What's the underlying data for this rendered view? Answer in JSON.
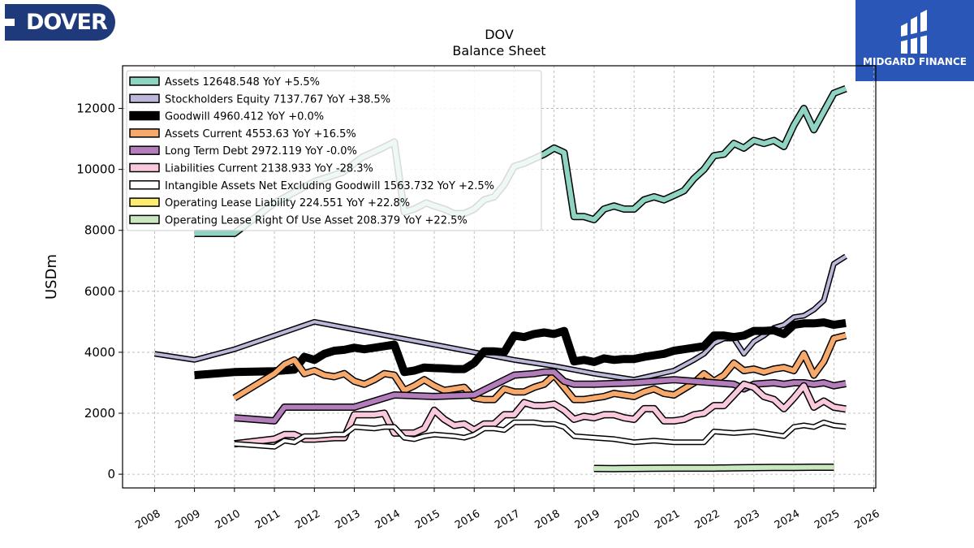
{
  "branding": {
    "left_logo_text": "DOVER",
    "right_logo_text": "MIDGARD FINANCE"
  },
  "chart_data": {
    "type": "line",
    "title": "DOV",
    "subtitle": "Balance  Sheet",
    "ylabel": "USDm",
    "xlabel": "",
    "xlim": [
      2007.2,
      2026.05
    ],
    "ylim": [
      -450,
      13400
    ],
    "xticks": [
      2008,
      2009,
      2010,
      2011,
      2012,
      2013,
      2014,
      2015,
      2016,
      2017,
      2018,
      2019,
      2020,
      2021,
      2022,
      2023,
      2024,
      2025,
      2026
    ],
    "xtick_labels": [
      "2008",
      "2009",
      "2010",
      "2011",
      "2012",
      "2013",
      "2014",
      "2015",
      "2016",
      "2017",
      "2018",
      "2019",
      "2020",
      "2021",
      "2022",
      "2023",
      "2024",
      "2025",
      "2026"
    ],
    "yticks": [
      0,
      2000,
      4000,
      6000,
      8000,
      10000,
      12000
    ],
    "ytick_labels": [
      "0",
      "2000",
      "4000",
      "6000",
      "8000",
      "10000",
      "12000"
    ],
    "grid": true,
    "legend_position": "top-left",
    "series": [
      {
        "name": "Assets  12648.548 YoY +5.5%",
        "color": "#8fd3c3",
        "width": 6,
        "x": [
          2009.0,
          2010.0,
          2011.0,
          2012.0,
          2012.7,
          2013.2,
          2013.7,
          2014.0,
          2014.25,
          2014.5,
          2014.8,
          2015.0,
          2015.25,
          2015.5,
          2015.75,
          2016.0,
          2016.25,
          2016.5,
          2016.75,
          2017.0,
          2017.25,
          2017.5,
          2017.75,
          2018.0,
          2018.25,
          2018.5,
          2018.75,
          2019.0,
          2019.25,
          2019.5,
          2019.75,
          2020.0,
          2020.25,
          2020.5,
          2020.75,
          2021.0,
          2021.25,
          2021.5,
          2021.75,
          2022.0,
          2022.25,
          2022.5,
          2022.75,
          2023.0,
          2023.25,
          2023.5,
          2023.75,
          2024.0,
          2024.25,
          2024.5,
          2024.75,
          2025.0,
          2025.3
        ],
        "y": [
          7900,
          7900,
          8900,
          9600,
          9900,
          10400,
          10700,
          10900,
          8600,
          8700,
          8900,
          8800,
          8700,
          8550,
          8550,
          8700,
          9000,
          9100,
          9500,
          10100,
          10200,
          10350,
          10500,
          10700,
          10550,
          8450,
          8450,
          8350,
          8700,
          8800,
          8700,
          8700,
          9000,
          9100,
          9000,
          9150,
          9300,
          9700,
          10000,
          10450,
          10500,
          10850,
          10700,
          10950,
          10850,
          10950,
          10750,
          11450,
          12000,
          11300,
          11900,
          12500,
          12650
        ]
      },
      {
        "name": "Stockholders Equity  7137.767 YoY +38.5%",
        "color": "#bcb8d9",
        "width": 4,
        "x": [
          2008.0,
          2009.0,
          2010.0,
          2011.0,
          2012.0,
          2013.0,
          2014.0,
          2015.0,
          2016.0,
          2017.0,
          2018.0,
          2019.0,
          2020.0,
          2021.0,
          2021.5,
          2021.75,
          2022.0,
          2022.25,
          2022.5,
          2022.75,
          2023.0,
          2023.25,
          2023.5,
          2023.75,
          2024.0,
          2024.25,
          2024.5,
          2024.75,
          2025.0,
          2025.3
        ],
        "y": [
          3950,
          3750,
          4100,
          4550,
          5000,
          4750,
          4500,
          4250,
          4000,
          3750,
          3550,
          3300,
          3100,
          3400,
          3750,
          3950,
          4300,
          4450,
          4450,
          3950,
          4350,
          4550,
          4800,
          4900,
          5150,
          5200,
          5400,
          5700,
          6900,
          7150
        ]
      },
      {
        "name": "Goodwill  4960.412 YoY +0.0%",
        "color": "#000000",
        "width": 10,
        "x": [
          2009.0,
          2010.0,
          2011.0,
          2011.5,
          2011.75,
          2012.0,
          2012.25,
          2012.5,
          2012.75,
          2013.0,
          2013.25,
          2013.5,
          2013.75,
          2014.0,
          2014.25,
          2014.5,
          2014.75,
          2015.0,
          2015.25,
          2015.5,
          2015.75,
          2016.0,
          2016.25,
          2016.5,
          2016.75,
          2017.0,
          2017.25,
          2017.5,
          2017.75,
          2018.0,
          2018.25,
          2018.5,
          2018.75,
          2019.0,
          2019.25,
          2019.5,
          2019.75,
          2020.0,
          2020.25,
          2020.5,
          2020.75,
          2021.0,
          2021.25,
          2021.5,
          2021.75,
          2022.0,
          2022.25,
          2022.5,
          2022.75,
          2023.0,
          2023.25,
          2023.5,
          2023.75,
          2024.0,
          2024.25,
          2024.5,
          2024.75,
          2025.0,
          2025.3
        ],
        "y": [
          3250,
          3350,
          3380,
          3430,
          3850,
          3750,
          3950,
          4050,
          4080,
          4150,
          4100,
          4150,
          4200,
          4250,
          3350,
          3400,
          3500,
          3480,
          3470,
          3450,
          3450,
          3650,
          4030,
          4030,
          4000,
          4550,
          4500,
          4600,
          4650,
          4600,
          4700,
          3700,
          3750,
          3680,
          3800,
          3750,
          3780,
          3780,
          3850,
          3900,
          3950,
          4050,
          4100,
          4150,
          4200,
          4550,
          4550,
          4500,
          4550,
          4700,
          4700,
          4720,
          4600,
          4900,
          4950,
          4950,
          4980,
          4900,
          4960
        ]
      },
      {
        "name": "Assets Current  4553.63 YoY +16.5%",
        "color": "#f6a96b",
        "width": 6,
        "x": [
          2010.0,
          2011.0,
          2011.25,
          2011.5,
          2011.75,
          2012.0,
          2012.25,
          2012.5,
          2012.75,
          2013.0,
          2013.25,
          2013.5,
          2013.75,
          2014.0,
          2014.25,
          2014.5,
          2014.75,
          2015.0,
          2015.25,
          2015.5,
          2015.75,
          2016.0,
          2016.25,
          2016.5,
          2016.75,
          2017.0,
          2017.25,
          2017.5,
          2017.75,
          2018.0,
          2018.25,
          2018.5,
          2018.75,
          2019.0,
          2019.25,
          2019.5,
          2019.75,
          2020.0,
          2020.25,
          2020.5,
          2020.75,
          2021.0,
          2021.25,
          2021.5,
          2021.75,
          2022.0,
          2022.25,
          2022.5,
          2022.75,
          2023.0,
          2023.25,
          2023.5,
          2023.75,
          2024.0,
          2024.25,
          2024.5,
          2024.75,
          2025.0,
          2025.3
        ],
        "y": [
          2500,
          3300,
          3600,
          3750,
          3300,
          3400,
          3250,
          3200,
          3300,
          3050,
          2950,
          3100,
          3300,
          3250,
          2750,
          2900,
          3100,
          2900,
          2750,
          2800,
          2850,
          2500,
          2450,
          2450,
          2800,
          2700,
          2700,
          2850,
          2950,
          3250,
          2850,
          2450,
          2450,
          2500,
          2550,
          2650,
          2600,
          2550,
          2700,
          2800,
          2650,
          2600,
          2800,
          3000,
          3300,
          3050,
          3250,
          3650,
          3400,
          3450,
          3350,
          3450,
          3500,
          3400,
          3950,
          3250,
          3700,
          4450,
          4550
        ]
      },
      {
        "name": "Long Term Debt  2972.119 YoY -0.0%",
        "color": "#b37cba",
        "width": 6,
        "x": [
          2010.0,
          2011.0,
          2011.25,
          2012.0,
          2013.0,
          2014.0,
          2015.0,
          2016.0,
          2017.0,
          2017.5,
          2017.75,
          2018.0,
          2018.25,
          2018.5,
          2019.0,
          2020.0,
          2021.0,
          2022.0,
          2022.5,
          2022.75,
          2023.0,
          2023.5,
          2023.75,
          2024.0,
          2024.25,
          2024.5,
          2024.75,
          2025.0,
          2025.3
        ],
        "y": [
          1850,
          1750,
          2200,
          2200,
          2200,
          2600,
          2550,
          2600,
          3250,
          3300,
          3350,
          3350,
          3050,
          2950,
          2950,
          3000,
          3100,
          3000,
          2950,
          2800,
          2950,
          3000,
          2950,
          3000,
          3000,
          2950,
          3000,
          2900,
          2970
        ]
      },
      {
        "name": "Liabilities Current  2138.933 YoY -28.3%",
        "color": "#f9c8dc",
        "width": 6,
        "x": [
          2010.0,
          2011.0,
          2011.25,
          2011.5,
          2011.75,
          2012.0,
          2012.5,
          2012.75,
          2013.0,
          2013.25,
          2013.5,
          2013.75,
          2014.0,
          2014.25,
          2014.5,
          2014.75,
          2015.0,
          2015.25,
          2015.5,
          2015.75,
          2016.0,
          2016.25,
          2016.5,
          2016.75,
          2017.0,
          2017.25,
          2017.5,
          2017.75,
          2018.0,
          2018.25,
          2018.5,
          2018.75,
          2019.0,
          2019.25,
          2019.5,
          2019.75,
          2020.0,
          2020.25,
          2020.5,
          2020.75,
          2021.0,
          2021.25,
          2021.5,
          2021.75,
          2022.0,
          2022.25,
          2022.5,
          2022.75,
          2023.0,
          2023.25,
          2023.5,
          2023.75,
          2024.0,
          2024.25,
          2024.5,
          2024.75,
          2025.0,
          2025.3
        ],
        "y": [
          1000,
          1150,
          1300,
          1300,
          1150,
          1150,
          1200,
          1200,
          1950,
          1950,
          1950,
          2000,
          1350,
          1350,
          1350,
          1500,
          2100,
          1800,
          1600,
          1650,
          1450,
          1650,
          1650,
          1950,
          1950,
          2350,
          2250,
          2250,
          2300,
          2100,
          1800,
          1900,
          1850,
          1950,
          1950,
          1850,
          1800,
          2150,
          2150,
          1750,
          1750,
          1800,
          1950,
          2000,
          2250,
          2250,
          2600,
          2950,
          2850,
          2550,
          2450,
          2150,
          2500,
          2900,
          2200,
          2400,
          2200,
          2140
        ]
      },
      {
        "name": "Intangible Assets Net Excluding Goodwill  1563.732 YoY +2.5%",
        "color": "#ffffff",
        "width": 4,
        "x": [
          2010.0,
          2011.0,
          2011.25,
          2011.5,
          2011.75,
          2012.0,
          2012.5,
          2012.75,
          2013.0,
          2013.5,
          2013.75,
          2014.0,
          2014.25,
          2014.5,
          2014.75,
          2015.0,
          2015.5,
          2015.75,
          2016.0,
          2016.25,
          2016.5,
          2016.75,
          2017.0,
          2017.5,
          2017.75,
          2018.0,
          2018.25,
          2018.5,
          2019.0,
          2019.5,
          2020.0,
          2020.5,
          2021.0,
          2021.5,
          2021.75,
          2022.0,
          2022.5,
          2023.0,
          2023.5,
          2023.75,
          2024.0,
          2024.25,
          2024.5,
          2024.75,
          2025.0,
          2025.3
        ],
        "y": [
          1000,
          900,
          1100,
          1050,
          1250,
          1250,
          1300,
          1300,
          1550,
          1500,
          1550,
          1550,
          1200,
          1150,
          1250,
          1300,
          1250,
          1200,
          1300,
          1500,
          1500,
          1450,
          1700,
          1700,
          1650,
          1650,
          1550,
          1250,
          1200,
          1150,
          1050,
          1100,
          1050,
          1050,
          1050,
          1400,
          1350,
          1400,
          1300,
          1250,
          1550,
          1600,
          1550,
          1700,
          1600,
          1560
        ]
      },
      {
        "name": "Operating Lease Liability  224.551 YoY +22.8%",
        "color": "#ffee6e",
        "width": 4,
        "x": [
          2019.0,
          2019.5,
          2020.0,
          2020.5,
          2021.0,
          2021.5,
          2022.0,
          2022.5,
          2023.0,
          2023.5,
          2024.0,
          2024.5,
          2025.0
        ],
        "y": [
          180,
          175,
          180,
          185,
          190,
          190,
          190,
          200,
          205,
          210,
          215,
          220,
          225
        ]
      },
      {
        "name": "Operating Lease Right Of Use Asset  208.379 YoY +22.5%",
        "color": "#c9e8c0",
        "width": 6,
        "x": [
          2019.0,
          2019.5,
          2020.0,
          2020.5,
          2021.0,
          2021.5,
          2022.0,
          2022.5,
          2023.0,
          2023.5,
          2024.0,
          2024.5,
          2025.0
        ],
        "y": [
          190,
          185,
          190,
          195,
          200,
          200,
          200,
          210,
          215,
          220,
          225,
          230,
          230
        ]
      }
    ]
  }
}
